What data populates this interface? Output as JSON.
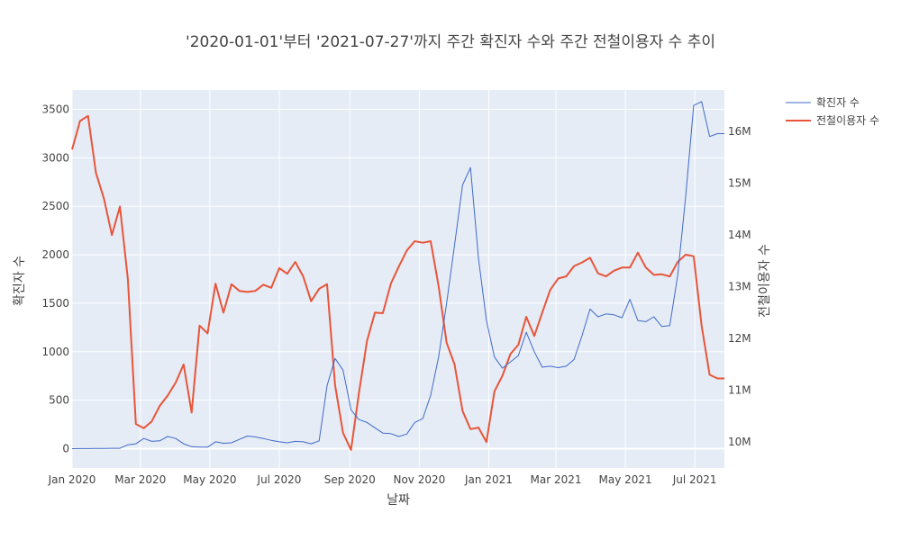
{
  "chart_data": {
    "type": "line",
    "title": "'2020-01-01'부터 '2021-07-27'까지 주간 확진자 수와 주간 전철이용자 수 추이",
    "xlabel": "날짜",
    "ylabel_left": "확진자 수",
    "ylabel_right": "전철이용자 수",
    "x_ticks": [
      "Jan 2020",
      "Mar 2020",
      "May 2020",
      "Jul 2020",
      "Sep 2020",
      "Nov 2020",
      "Jan 2021",
      "Mar 2021",
      "May 2021",
      "Jul 2021"
    ],
    "y_left_ticks": [
      "0",
      "500",
      "1000",
      "1500",
      "2000",
      "2500",
      "3000",
      "3500"
    ],
    "y_right_ticks": [
      "10M",
      "11M",
      "12M",
      "13M",
      "14M",
      "15M",
      "16M"
    ],
    "y_left_range": [
      -200,
      3700
    ],
    "y_right_range": [
      9500000,
      16800000
    ],
    "x_range": [
      "2020-01-01",
      "2021-07-27"
    ],
    "legend_position": "top-right",
    "series": [
      {
        "name": "확진자 수",
        "axis": "left",
        "color": "#4169c8",
        "x": [
          "2020-01-01",
          "2020-01-08",
          "2020-01-15",
          "2020-01-22",
          "2020-01-29",
          "2020-02-05",
          "2020-02-12",
          "2020-02-19",
          "2020-02-26",
          "2020-03-04",
          "2020-03-11",
          "2020-03-18",
          "2020-03-25",
          "2020-04-01",
          "2020-04-08",
          "2020-04-15",
          "2020-04-22",
          "2020-04-29",
          "2020-05-06",
          "2020-05-13",
          "2020-05-20",
          "2020-05-27",
          "2020-06-03",
          "2020-06-10",
          "2020-06-17",
          "2020-06-24",
          "2020-07-01",
          "2020-07-08",
          "2020-07-15",
          "2020-07-22",
          "2020-07-29",
          "2020-08-05",
          "2020-08-12",
          "2020-08-19",
          "2020-08-26",
          "2020-09-02",
          "2020-09-09",
          "2020-09-16",
          "2020-09-23",
          "2020-09-30",
          "2020-10-07",
          "2020-10-14",
          "2020-10-21",
          "2020-10-28",
          "2020-11-04",
          "2020-11-11",
          "2020-11-18",
          "2020-11-25",
          "2020-12-02",
          "2020-12-09",
          "2020-12-16",
          "2020-12-23",
          "2020-12-30",
          "2021-01-06",
          "2021-01-13",
          "2021-01-20",
          "2021-01-27",
          "2021-02-03",
          "2021-02-10",
          "2021-02-17",
          "2021-02-24",
          "2021-03-03",
          "2021-03-10",
          "2021-03-17",
          "2021-03-24",
          "2021-03-31",
          "2021-04-07",
          "2021-04-14",
          "2021-04-21",
          "2021-04-28",
          "2021-05-05",
          "2021-05-12",
          "2021-05-19",
          "2021-05-26",
          "2021-06-02",
          "2021-06-09",
          "2021-06-16",
          "2021-06-23",
          "2021-06-30",
          "2021-07-07",
          "2021-07-14",
          "2021-07-21",
          "2021-07-27"
        ],
        "values": [
          0,
          1,
          1,
          2,
          2,
          3,
          3,
          40,
          50,
          105,
          75,
          80,
          125,
          105,
          50,
          20,
          15,
          15,
          70,
          55,
          60,
          95,
          130,
          120,
          105,
          85,
          70,
          60,
          75,
          70,
          50,
          80,
          650,
          930,
          810,
          400,
          300,
          270,
          215,
          160,
          155,
          125,
          150,
          270,
          310,
          550,
          950,
          1500,
          2100,
          2720,
          2900,
          1960,
          1320,
          945,
          830,
          895,
          960,
          1200,
          1000,
          840,
          850,
          835,
          850,
          920,
          1170,
          1440,
          1360,
          1390,
          1380,
          1350,
          1540,
          1320,
          1310,
          1360,
          1260,
          1270,
          1790,
          2600,
          3540,
          3580,
          3220,
          3250,
          3250
        ]
      },
      {
        "name": "전철이용자 수",
        "axis": "right",
        "color": "#e8553a",
        "x": [
          "2020-01-01",
          "2020-01-08",
          "2020-01-15",
          "2020-01-22",
          "2020-01-29",
          "2020-02-05",
          "2020-02-12",
          "2020-02-19",
          "2020-02-26",
          "2020-03-04",
          "2020-03-11",
          "2020-03-18",
          "2020-03-25",
          "2020-04-01",
          "2020-04-08",
          "2020-04-15",
          "2020-04-22",
          "2020-04-29",
          "2020-05-06",
          "2020-05-13",
          "2020-05-20",
          "2020-05-27",
          "2020-06-03",
          "2020-06-10",
          "2020-06-17",
          "2020-06-24",
          "2020-07-01",
          "2020-07-08",
          "2020-07-15",
          "2020-07-22",
          "2020-07-29",
          "2020-08-05",
          "2020-08-12",
          "2020-08-19",
          "2020-08-26",
          "2020-09-02",
          "2020-09-09",
          "2020-09-16",
          "2020-09-23",
          "2020-09-30",
          "2020-10-07",
          "2020-10-14",
          "2020-10-21",
          "2020-10-28",
          "2020-11-04",
          "2020-11-11",
          "2020-11-18",
          "2020-11-25",
          "2020-12-02",
          "2020-12-09",
          "2020-12-16",
          "2020-12-23",
          "2020-12-30",
          "2021-01-06",
          "2021-01-13",
          "2021-01-20",
          "2021-01-27",
          "2021-02-03",
          "2021-02-10",
          "2021-02-17",
          "2021-02-24",
          "2021-03-03",
          "2021-03-10",
          "2021-03-17",
          "2021-03-24",
          "2021-03-31",
          "2021-04-07",
          "2021-04-14",
          "2021-04-21",
          "2021-04-28",
          "2021-05-05",
          "2021-05-12",
          "2021-05-19",
          "2021-05-26",
          "2021-06-02",
          "2021-06-09",
          "2021-06-16",
          "2021-06-23",
          "2021-06-30",
          "2021-07-07",
          "2021-07-14",
          "2021-07-21",
          "2021-07-27"
        ],
        "values": [
          15650000,
          16200000,
          16300000,
          15200000,
          14700000,
          14000000,
          14550000,
          13150000,
          10350000,
          10270000,
          10400000,
          10700000,
          10900000,
          11150000,
          11500000,
          10570000,
          12250000,
          12100000,
          13060000,
          12500000,
          13050000,
          12920000,
          12900000,
          12920000,
          13040000,
          12980000,
          13360000,
          13250000,
          13480000,
          13200000,
          12720000,
          12960000,
          13050000,
          11100000,
          10180000,
          9850000,
          10950000,
          11950000,
          12500000,
          12490000,
          13060000,
          13390000,
          13700000,
          13880000,
          13850000,
          13880000,
          13000000,
          11920000,
          11500000,
          10600000,
          10250000,
          10280000,
          10000000,
          10980000,
          11280000,
          11700000,
          11880000,
          12420000,
          12050000,
          12500000,
          12940000,
          13160000,
          13200000,
          13400000,
          13470000,
          13560000,
          13260000,
          13200000,
          13310000,
          13370000,
          13370000,
          13660000,
          13370000,
          13230000,
          13240000,
          13200000,
          13480000,
          13620000,
          13590000,
          12250000,
          11300000,
          11230000,
          11230000
        ]
      }
    ]
  }
}
